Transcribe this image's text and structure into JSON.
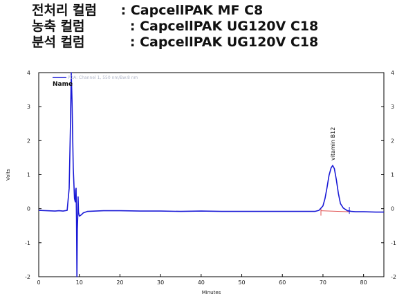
{
  "header": {
    "lines": [
      {
        "label": "전처리 컬럼",
        "sep": " : ",
        "value": "CapcellPAK MF C8"
      },
      {
        "label": "농축 컬럼",
        "sep": "   : ",
        "value": "CapcellPAK UG120V C18"
      },
      {
        "label": "분석 컬럼",
        "sep": "   : ",
        "value": "CapcellPAK UG120V C18"
      }
    ]
  },
  "chart_data": {
    "type": "line",
    "xlabel": "Minutes",
    "ylabel": "Volts",
    "xlim": [
      0,
      85
    ],
    "ylim": [
      -2,
      4
    ],
    "x_ticks": [
      0,
      10,
      20,
      30,
      40,
      50,
      60,
      70,
      80
    ],
    "y_ticks": [
      -2,
      -1,
      0,
      1,
      2,
      3,
      4
    ],
    "legend": {
      "placement": "top-left",
      "entries": [
        "PDA: Channel 1, 550 nm/Bw:8 nm"
      ]
    },
    "annotations": {
      "name_label": "Name",
      "peak_label": "vitamin B12",
      "peak_x": 72.4
    },
    "colors": {
      "trace": "#1a1ad6",
      "baseline": "#e05050",
      "axis": "#000000"
    },
    "series": [
      {
        "name": "PDA: Channel 1, 550 nm/Bw:8 nm",
        "x": [
          0,
          2,
          4,
          5,
          6,
          7,
          7.5,
          7.8,
          8.0,
          8.2,
          8.5,
          8.8,
          9.0,
          9.1,
          9.2,
          9.3,
          9.4,
          9.5,
          9.6,
          9.7,
          9.8,
          10.0,
          10.5,
          11,
          12,
          14,
          16,
          20,
          25,
          30,
          35,
          40,
          45,
          50,
          55,
          60,
          65,
          68,
          69,
          70,
          70.5,
          71,
          71.5,
          72,
          72.4,
          72.8,
          73.3,
          73.8,
          74.3,
          75,
          76,
          77,
          78,
          80,
          83,
          85
        ],
        "y": [
          -0.05,
          -0.06,
          -0.07,
          -0.06,
          -0.07,
          -0.05,
          0.6,
          2.4,
          4.0,
          3.2,
          1.2,
          0.3,
          0.2,
          0.55,
          0.6,
          -0.3,
          -2.0,
          -0.6,
          -0.25,
          0.35,
          -0.1,
          -0.22,
          -0.18,
          -0.12,
          -0.08,
          -0.07,
          -0.06,
          -0.06,
          -0.07,
          -0.07,
          -0.08,
          -0.07,
          -0.08,
          -0.08,
          -0.08,
          -0.08,
          -0.08,
          -0.08,
          -0.05,
          0.08,
          0.3,
          0.62,
          0.98,
          1.2,
          1.27,
          1.18,
          0.85,
          0.45,
          0.15,
          0.02,
          -0.06,
          -0.08,
          -0.09,
          -0.09,
          -0.1,
          -0.1
        ]
      }
    ]
  }
}
